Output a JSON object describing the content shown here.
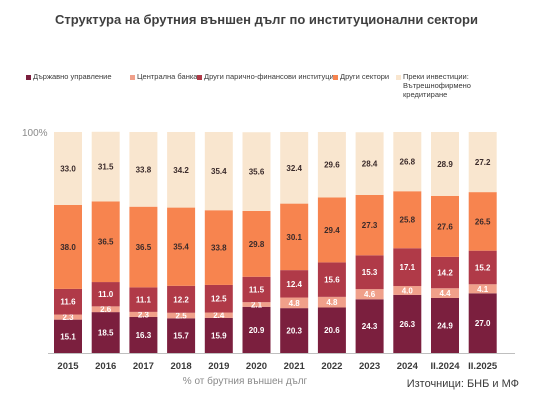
{
  "title": "Структура на брутния външен дълг по институционални сектори",
  "source": "Източници: БНБ и МФ",
  "colors": {
    "government": "#7b1f3e",
    "central_bank": "#f0a08a",
    "other_mfi": "#b03a48",
    "other_sectors": "#f7844f",
    "fdi": "#f9e6cf"
  },
  "chart_data": {
    "type": "bar",
    "stacked": true,
    "title": "Структура на брутния външен дълг по институционални сектори",
    "xlabel": "% от брутния външен дълг",
    "ylabel": "",
    "ylim": [
      0,
      100
    ],
    "y_tick_label": "100%",
    "legend_position": "top",
    "grid": false,
    "categories": [
      "2015",
      "2016",
      "2017",
      "2018",
      "2019",
      "2020",
      "2021",
      "2022",
      "2023",
      "2024",
      "II.2024",
      "II.2025"
    ],
    "series": [
      {
        "name": "Държавно управление",
        "key": "government",
        "values": [
          15.1,
          18.5,
          16.3,
          15.7,
          15.9,
          20.9,
          20.3,
          20.6,
          24.3,
          26.3,
          24.9,
          27.0
        ]
      },
      {
        "name": "Централна банка",
        "key": "central_bank",
        "values": [
          2.3,
          2.6,
          2.3,
          2.5,
          2.4,
          2.1,
          4.8,
          4.8,
          4.6,
          4.0,
          4.4,
          4.1
        ]
      },
      {
        "name": "Други парично-финансови институции",
        "key": "other_mfi",
        "values": [
          11.6,
          11.0,
          11.1,
          12.2,
          12.5,
          11.5,
          12.4,
          15.6,
          15.3,
          17.1,
          14.2,
          15.2
        ]
      },
      {
        "name": "Други сектори",
        "key": "other_sectors",
        "values": [
          38.0,
          36.5,
          36.5,
          35.4,
          33.8,
          29.8,
          30.1,
          29.4,
          27.3,
          25.8,
          27.6,
          26.5
        ]
      },
      {
        "name": "Преки инвестиции: Вътрешнофирмено кредитиране",
        "key": "fdi",
        "values": [
          33.0,
          31.5,
          33.8,
          34.2,
          35.4,
          35.6,
          32.4,
          29.6,
          28.4,
          26.8,
          28.9,
          27.2
        ]
      }
    ]
  }
}
